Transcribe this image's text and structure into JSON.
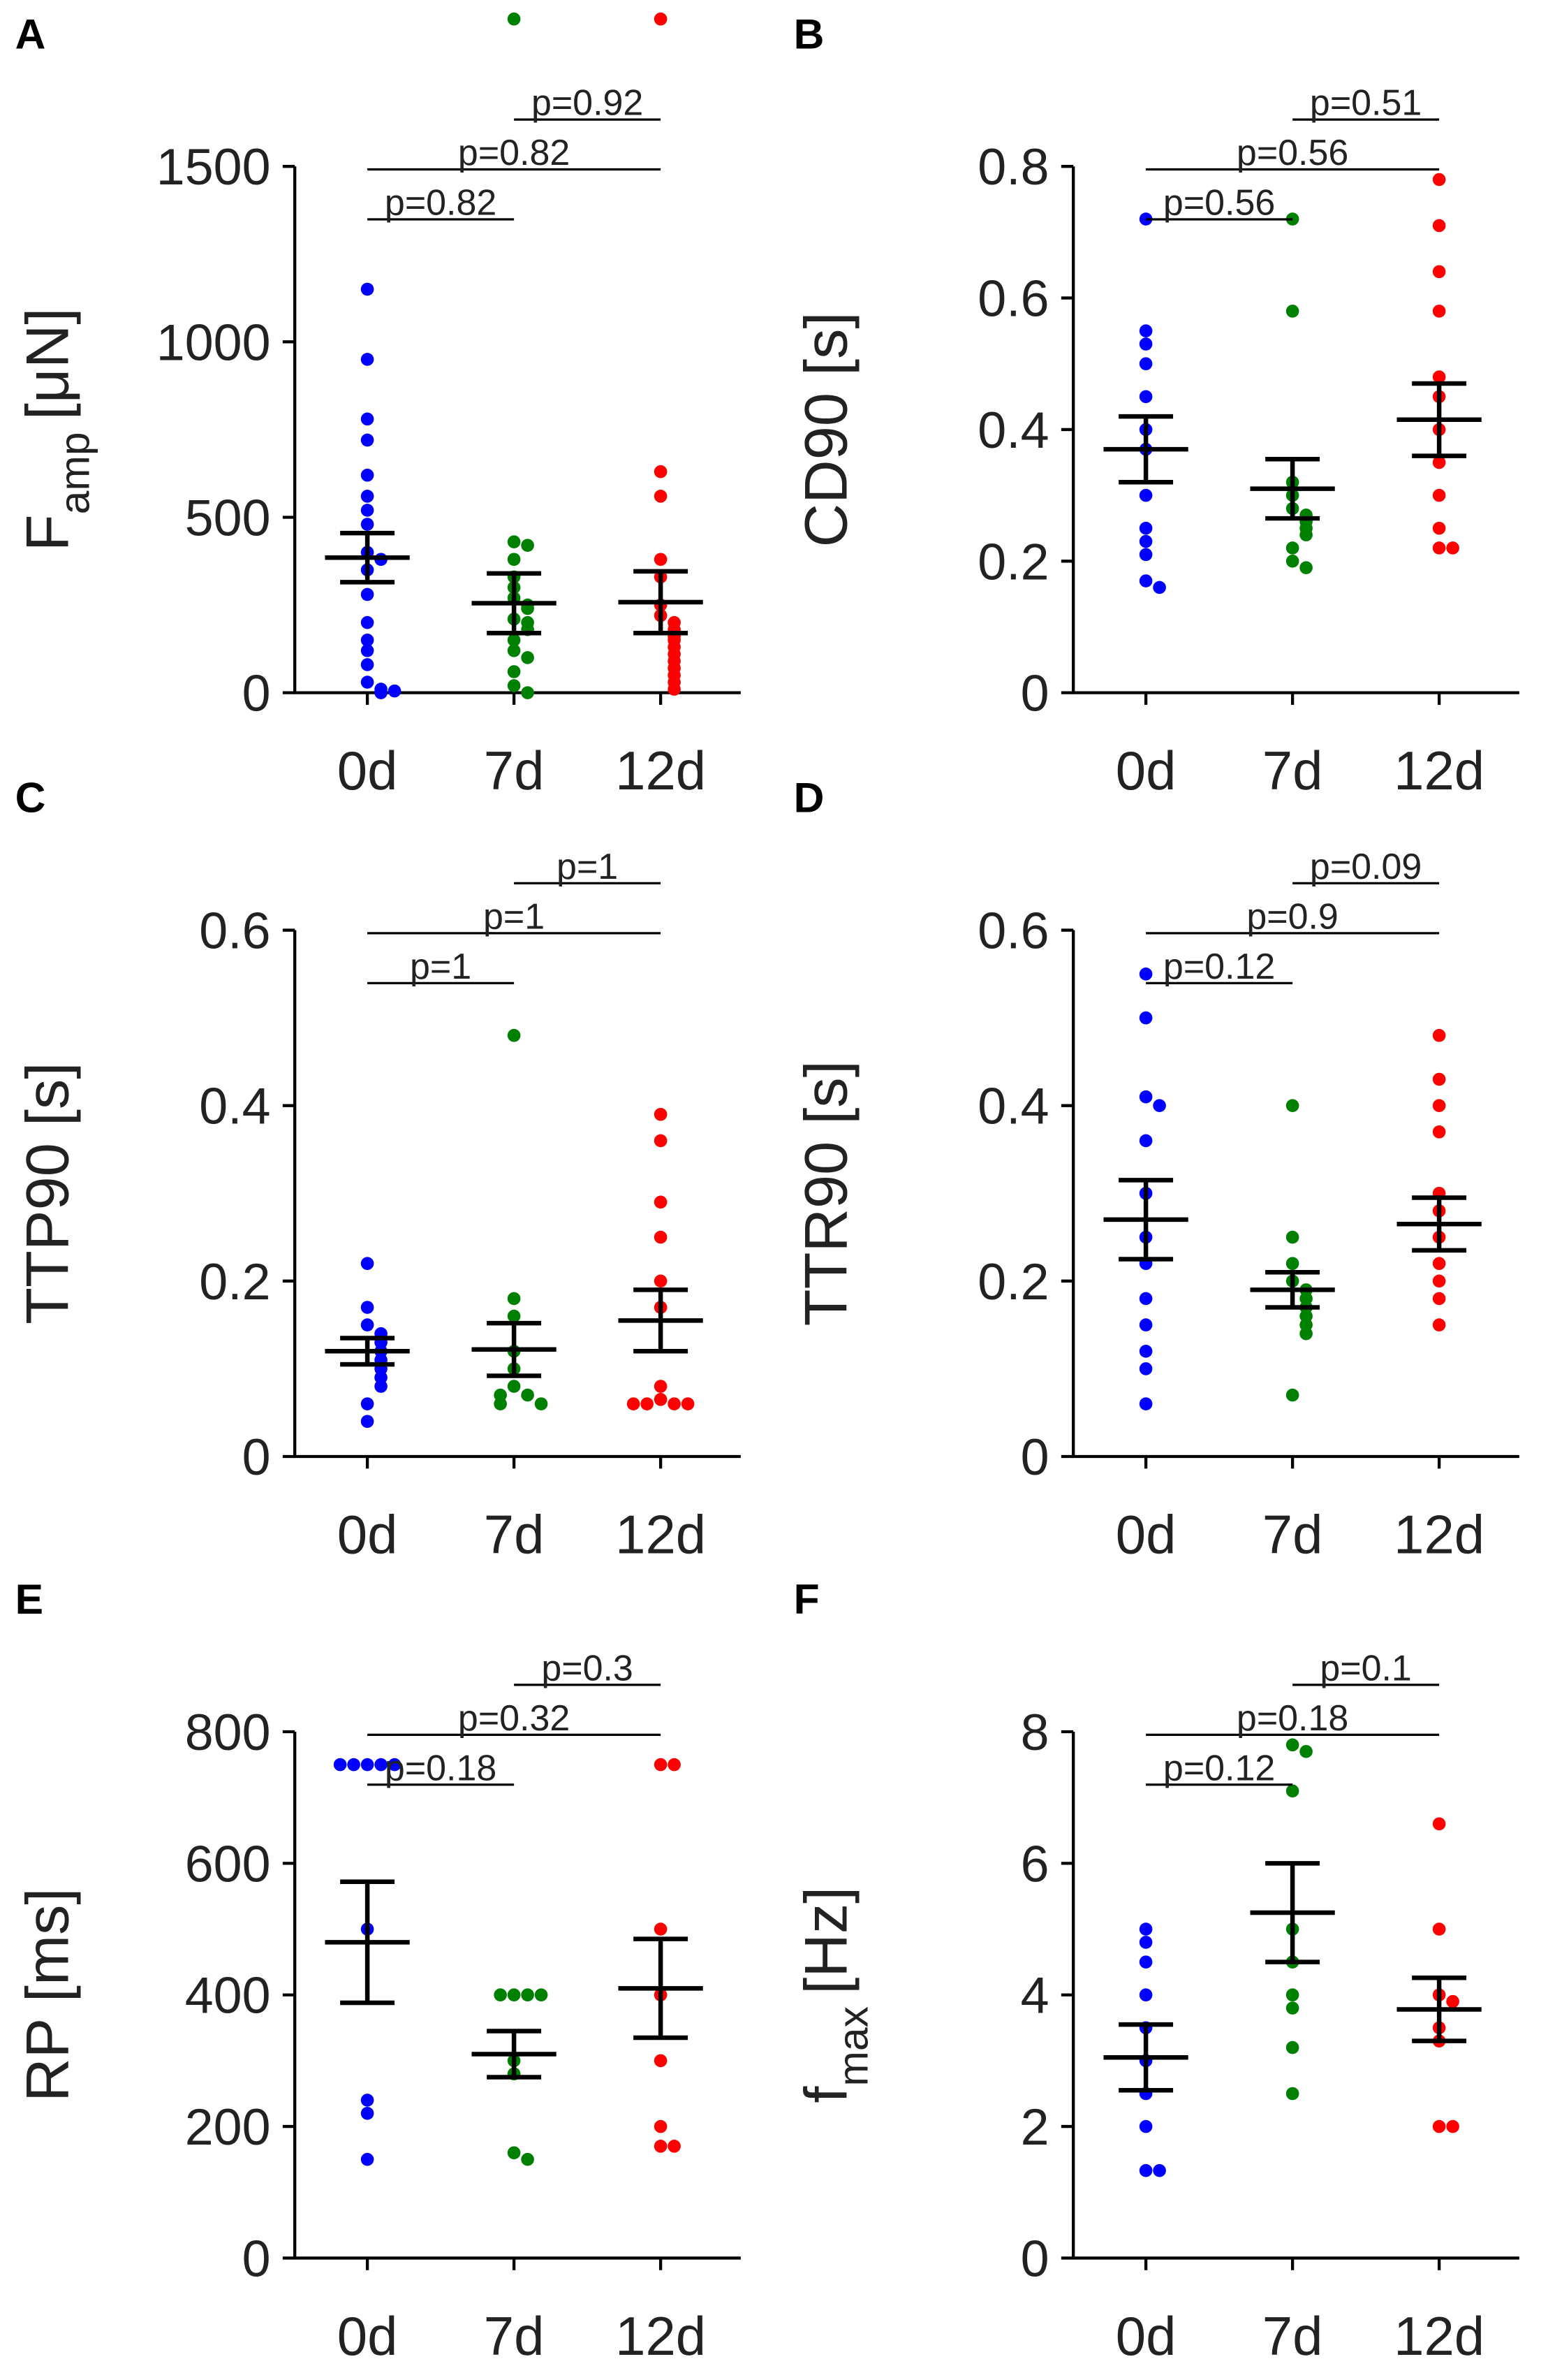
{
  "chart_data": [
    {
      "type": "strip",
      "panel": "A",
      "ylabel": "F",
      "ylabel_sub": "amp",
      "ylabel_unit": "[μN]",
      "categories": [
        "0d",
        "7d",
        "12d"
      ],
      "ylim": [
        0,
        1500
      ],
      "yticks": [
        0,
        500,
        1000,
        1500
      ],
      "series": [
        {
          "color": "#0000ff",
          "values": [
            1150,
            950,
            780,
            720,
            620,
            560,
            520,
            480,
            400,
            380,
            350,
            280,
            200,
            150,
            120,
            80,
            30,
            10,
            0,
            5
          ]
        },
        {
          "color": "#008000",
          "values": [
            1920,
            430,
            420,
            380,
            330,
            300,
            270,
            250,
            240,
            210,
            200,
            180,
            150,
            120,
            100,
            60,
            20,
            0
          ]
        },
        {
          "color": "#ff0000",
          "values": [
            1920,
            630,
            560,
            380,
            330,
            250,
            220,
            200,
            180,
            160,
            150,
            130,
            110,
            90,
            70,
            50,
            30,
            10
          ]
        }
      ],
      "means": [
        385,
        255,
        258
      ],
      "errors": [
        70,
        85,
        88
      ],
      "annotations": [
        {
          "text": "p=0.82",
          "groups": [
            0,
            1
          ]
        },
        {
          "text": "p=0.82",
          "groups": [
            0,
            2
          ]
        },
        {
          "text": "p=0.92",
          "groups": [
            1,
            2
          ]
        }
      ]
    },
    {
      "type": "strip",
      "panel": "B",
      "ylabel": "CD90 [s]",
      "categories": [
        "0d",
        "7d",
        "12d"
      ],
      "ylim": [
        0,
        0.8
      ],
      "yticks": [
        0,
        0.2,
        0.4,
        0.6,
        0.8
      ],
      "series": [
        {
          "color": "#0000ff",
          "values": [
            0.72,
            0.55,
            0.53,
            0.5,
            0.45,
            0.4,
            0.37,
            0.3,
            0.25,
            0.23,
            0.21,
            0.17,
            0.16
          ]
        },
        {
          "color": "#008000",
          "values": [
            0.72,
            0.58,
            0.32,
            0.3,
            0.28,
            0.27,
            0.26,
            0.25,
            0.24,
            0.22,
            0.2,
            0.19
          ]
        },
        {
          "color": "#ff0000",
          "values": [
            0.78,
            0.71,
            0.64,
            0.58,
            0.48,
            0.45,
            0.4,
            0.35,
            0.3,
            0.25,
            0.22,
            0.22
          ]
        }
      ],
      "means": [
        0.37,
        0.31,
        0.415
      ],
      "errors": [
        0.05,
        0.045,
        0.055
      ],
      "annotations": [
        {
          "text": "p=0.56",
          "groups": [
            0,
            1
          ]
        },
        {
          "text": "p=0.56",
          "groups": [
            0,
            2
          ]
        },
        {
          "text": "p=0.51",
          "groups": [
            1,
            2
          ]
        }
      ]
    },
    {
      "type": "strip",
      "panel": "C",
      "ylabel": "TTP90 [s]",
      "categories": [
        "0d",
        "7d",
        "12d"
      ],
      "ylim": [
        0,
        0.6
      ],
      "yticks": [
        0,
        0.2,
        0.4,
        0.6
      ],
      "series": [
        {
          "color": "#0000ff",
          "values": [
            0.22,
            0.17,
            0.15,
            0.14,
            0.13,
            0.12,
            0.11,
            0.1,
            0.09,
            0.08,
            0.06,
            0.04
          ]
        },
        {
          "color": "#008000",
          "values": [
            0.48,
            0.18,
            0.16,
            0.12,
            0.1,
            0.08,
            0.07,
            0.07,
            0.06,
            0.06
          ]
        },
        {
          "color": "#ff0000",
          "values": [
            0.39,
            0.36,
            0.29,
            0.25,
            0.2,
            0.17,
            0.08,
            0.065,
            0.06,
            0.06,
            0.06,
            0.06
          ]
        }
      ],
      "means": [
        0.12,
        0.122,
        0.155
      ],
      "errors": [
        0.015,
        0.03,
        0.035
      ],
      "annotations": [
        {
          "text": "p=1",
          "groups": [
            0,
            1
          ]
        },
        {
          "text": "p=1",
          "groups": [
            0,
            2
          ]
        },
        {
          "text": "p=1",
          "groups": [
            1,
            2
          ]
        }
      ]
    },
    {
      "type": "strip",
      "panel": "D",
      "ylabel": "TTR90 [s]",
      "categories": [
        "0d",
        "7d",
        "12d"
      ],
      "ylim": [
        0,
        0.6
      ],
      "yticks": [
        0,
        0.2,
        0.4,
        0.6
      ],
      "series": [
        {
          "color": "#0000ff",
          "values": [
            0.55,
            0.5,
            0.41,
            0.4,
            0.36,
            0.3,
            0.25,
            0.22,
            0.18,
            0.15,
            0.12,
            0.1,
            0.06
          ]
        },
        {
          "color": "#008000",
          "values": [
            0.4,
            0.25,
            0.22,
            0.2,
            0.19,
            0.18,
            0.17,
            0.16,
            0.15,
            0.14,
            0.07
          ]
        },
        {
          "color": "#ff0000",
          "values": [
            0.48,
            0.43,
            0.4,
            0.37,
            0.3,
            0.28,
            0.25,
            0.22,
            0.2,
            0.18,
            0.15
          ]
        }
      ],
      "means": [
        0.27,
        0.19,
        0.265
      ],
      "errors": [
        0.045,
        0.02,
        0.03
      ],
      "annotations": [
        {
          "text": "p=0.12",
          "groups": [
            0,
            1
          ]
        },
        {
          "text": "p=0.9",
          "groups": [
            0,
            2
          ]
        },
        {
          "text": "p=0.09",
          "groups": [
            1,
            2
          ]
        }
      ]
    },
    {
      "type": "strip",
      "panel": "E",
      "ylabel": "RP [ms]",
      "categories": [
        "0d",
        "7d",
        "12d"
      ],
      "ylim": [
        0,
        800
      ],
      "yticks": [
        0,
        200,
        400,
        600,
        800
      ],
      "series": [
        {
          "color": "#0000ff",
          "values": [
            750,
            750,
            750,
            750,
            750,
            500,
            240,
            220,
            150
          ]
        },
        {
          "color": "#008000",
          "values": [
            400,
            400,
            400,
            400,
            300,
            280,
            160,
            150
          ]
        },
        {
          "color": "#ff0000",
          "values": [
            750,
            750,
            500,
            400,
            300,
            200,
            170,
            170
          ]
        }
      ],
      "means": [
        480,
        310,
        410
      ],
      "errors": [
        92,
        35,
        75
      ],
      "annotations": [
        {
          "text": "p=0.18",
          "groups": [
            0,
            1
          ]
        },
        {
          "text": "p=0.32",
          "groups": [
            0,
            2
          ]
        },
        {
          "text": "p=0.3",
          "groups": [
            1,
            2
          ]
        }
      ]
    },
    {
      "type": "strip",
      "panel": "F",
      "ylabel": "f",
      "ylabel_sub": "max",
      "ylabel_unit": "[Hz]",
      "categories": [
        "0d",
        "7d",
        "12d"
      ],
      "ylim": [
        0,
        8
      ],
      "yticks": [
        0,
        2,
        4,
        6,
        8
      ],
      "series": [
        {
          "color": "#0000ff",
          "values": [
            5,
            4.8,
            4.5,
            4,
            3.5,
            3,
            2.5,
            2,
            1.33,
            1.33
          ]
        },
        {
          "color": "#008000",
          "values": [
            7.8,
            7.7,
            7.1,
            5,
            4.5,
            4,
            3.8,
            3.2,
            2.5
          ]
        },
        {
          "color": "#ff0000",
          "values": [
            6.6,
            5,
            4,
            3.9,
            3.5,
            3.3,
            2,
            2
          ]
        }
      ],
      "means": [
        3.05,
        5.25,
        3.78
      ],
      "errors": [
        0.5,
        0.75,
        0.48
      ],
      "annotations": [
        {
          "text": "p=0.12",
          "groups": [
            0,
            1
          ]
        },
        {
          "text": "p=0.18",
          "groups": [
            0,
            2
          ]
        },
        {
          "text": "p=0.1",
          "groups": [
            1,
            2
          ]
        }
      ]
    }
  ]
}
